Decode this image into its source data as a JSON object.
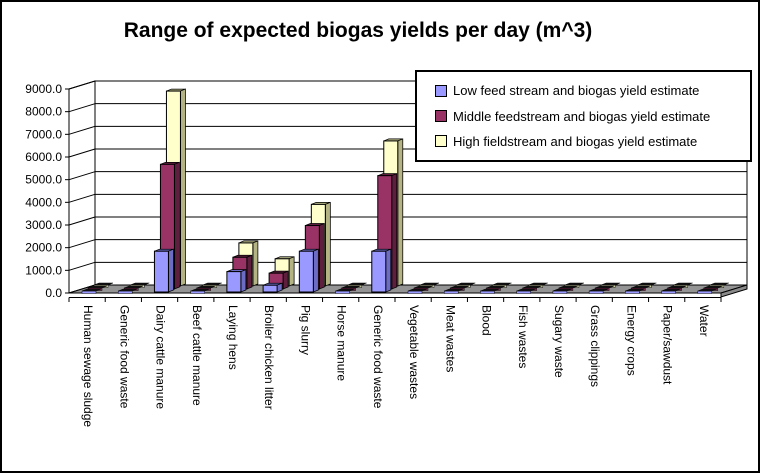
{
  "chart_data": {
    "type": "bar",
    "subtype": "3d-clustered-column",
    "title": "Range of expected biogas yields per day (m^3)",
    "categories": [
      "Human sewage sludge",
      "Generic food waste",
      "Dairy cattle manure",
      "Beef cattle manure",
      "Laying hens",
      "Broiler chicken litter",
      "Pig slurry",
      "Horse manure",
      "Generic food waste",
      "Vegetable wastes",
      "Meat wastes",
      "Blood",
      "Fish wastes",
      "Sugary waste",
      "Grass clippings",
      "Energy crops",
      "Paper/sawdust",
      "Water"
    ],
    "series": [
      {
        "name": "Low feed stream and biogas yield estimate",
        "color": "#9999FF",
        "side_color": "#6C6CC4",
        "values": [
          0,
          0,
          1800,
          0,
          900,
          300,
          1800,
          0,
          1800,
          0,
          0,
          0,
          0,
          0,
          0,
          0,
          0,
          0
        ]
      },
      {
        "name": "Middle feedstream and biogas yield estimate",
        "color": "#993366",
        "side_color": "#5E1F3F",
        "values": [
          0,
          0,
          5500,
          0,
          1400,
          700,
          2800,
          0,
          5000,
          0,
          0,
          0,
          0,
          0,
          0,
          0,
          0,
          0
        ]
      },
      {
        "name": "High fieldstream and biogas yield estimate",
        "color": "#FFFFCC",
        "side_color": "#B3B384",
        "values": [
          0,
          0,
          8600,
          0,
          1900,
          1200,
          3600,
          0,
          6400,
          0,
          0,
          0,
          0,
          0,
          0,
          0,
          0,
          0
        ]
      }
    ],
    "ylim": [
      0,
      9000
    ],
    "ytick_step": 1000,
    "ytick_labels": [
      "0.0",
      "1000.0",
      "2000.0",
      "3000.0",
      "4000.0",
      "5000.0",
      "6000.0",
      "7000.0",
      "8000.0",
      "9000.0"
    ],
    "legend_position": "top-right",
    "grid": "horizontal",
    "background_color": "#FFFFFF",
    "wall_color": "#FFFFFF",
    "floor_color": "#949494",
    "floor_side_color": "#8A8A8A",
    "zero_mark_color": "#141414",
    "axis_color": "#000000"
  }
}
